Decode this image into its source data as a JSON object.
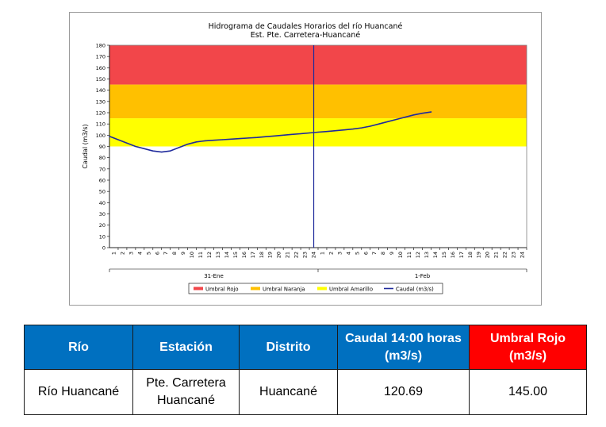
{
  "chart_data": {
    "type": "line",
    "title": "Hidrograma de Caudales Horarios del río Huancané",
    "subtitle": "Est. Pte. Carretera-Huancané",
    "ylabel": "Caudal (m3/s)",
    "ylim": [
      0,
      180
    ],
    "yticks": [
      0,
      10,
      20,
      30,
      40,
      50,
      60,
      70,
      80,
      90,
      100,
      110,
      120,
      130,
      140,
      150,
      160,
      170,
      180
    ],
    "x_hours": [
      "1",
      "2",
      "3",
      "4",
      "5",
      "6",
      "7",
      "8",
      "9",
      "10",
      "11",
      "12",
      "13",
      "14",
      "15",
      "16",
      "17",
      "18",
      "19",
      "20",
      "21",
      "22",
      "23",
      "24",
      "1",
      "2",
      "3",
      "4",
      "5",
      "6",
      "7",
      "8",
      "9",
      "10",
      "11",
      "12",
      "13",
      "14",
      "15",
      "16",
      "17",
      "18",
      "19",
      "20",
      "21",
      "22",
      "23",
      "24"
    ],
    "x_days": [
      "31-Ene",
      "1-Feb"
    ],
    "thresholds": [
      {
        "name": "Umbral Rojo",
        "from": 145,
        "to": 180,
        "color": "#f2464a"
      },
      {
        "name": "Umbral Naranja",
        "from": 115,
        "to": 145,
        "color": "#ffc000"
      },
      {
        "name": "Umbral Amarillo",
        "from": 90,
        "to": 115,
        "color": "#ffff00"
      }
    ],
    "marker_hour": 24.5,
    "series": [
      {
        "name": "Caudal (m3/s)",
        "color": "#1f2a9c",
        "x": [
          1,
          2,
          3,
          4,
          5,
          6,
          7,
          8,
          9,
          10,
          11,
          12,
          13,
          14,
          15,
          16,
          17,
          18,
          19,
          20,
          21,
          22,
          23,
          24,
          25,
          26,
          27,
          28,
          29,
          30,
          31,
          32,
          33,
          34,
          35,
          36,
          37,
          38
        ],
        "values": [
          99,
          96,
          93,
          90,
          88,
          86,
          85,
          86,
          89,
          92,
          94,
          95,
          95.5,
          96,
          96.5,
          97,
          97.5,
          98,
          98.7,
          99.3,
          100,
          100.7,
          101.3,
          102,
          102.7,
          103.3,
          104,
          104.7,
          105.5,
          106.5,
          108,
          110,
          112,
          114,
          116,
          118,
          119.5,
          120.69
        ]
      }
    ],
    "legend": [
      "Umbral Rojo",
      "Umbral Naranja",
      "Umbral Amarillo",
      "Caudal (m3/s)"
    ],
    "legend_position": "bottom",
    "colors": {
      "red_header": "#ff0000",
      "blue_header": "#0070c0",
      "marker_line": "#1f2a9c"
    }
  },
  "table": {
    "headers": [
      "Río",
      "Estación",
      "Distrito",
      "Caudal  14:00 horas (m3/s)",
      "Umbral Rojo (m3/s)"
    ],
    "row": [
      "Río Huancané",
      "Pte. Carretera Huancané",
      "Huancané",
      "120.69",
      "145.00"
    ]
  }
}
